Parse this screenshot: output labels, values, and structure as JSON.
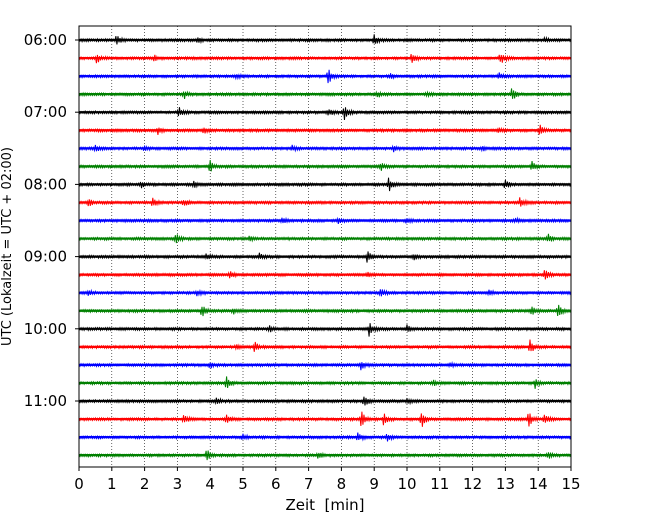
{
  "chart_data": {
    "type": "line",
    "title": "",
    "xlabel": "Zeit  [min]",
    "ylabel": "UTC (Lokalzeit = UTC + 02:00)",
    "xlim": [
      0,
      15
    ],
    "x_ticks": [
      "0",
      "1",
      "2",
      "3",
      "4",
      "5",
      "6",
      "7",
      "8",
      "9",
      "10",
      "11",
      "12",
      "13",
      "14",
      "15"
    ],
    "y_tick_labels": [
      "06:00",
      "07:00",
      "08:00",
      "09:00",
      "10:00",
      "11:00"
    ],
    "row_minutes": 15,
    "row_colors": [
      "#000000",
      "#ff0000",
      "#0000ff",
      "#008000"
    ],
    "grid": "vertical dotted lines at each minute",
    "traces": [
      {
        "start": "06:00",
        "events": [
          {
            "t": 1.15,
            "a": 0.5
          },
          {
            "t": 3.6,
            "a": 0.25
          },
          {
            "t": 9.0,
            "a": 0.55
          },
          {
            "t": 14.2,
            "a": 0.2
          }
        ]
      },
      {
        "start": "06:15",
        "events": [
          {
            "t": 0.55,
            "a": 0.6
          },
          {
            "t": 2.3,
            "a": 0.25
          },
          {
            "t": 10.15,
            "a": 0.55
          },
          {
            "t": 12.85,
            "a": 0.65
          }
        ]
      },
      {
        "start": "06:30",
        "events": [
          {
            "t": 4.8,
            "a": 0.25
          },
          {
            "t": 7.6,
            "a": 0.8
          },
          {
            "t": 9.5,
            "a": 0.3
          },
          {
            "t": 12.8,
            "a": 0.35
          }
        ]
      },
      {
        "start": "06:45",
        "events": [
          {
            "t": 3.2,
            "a": 0.45
          },
          {
            "t": 9.1,
            "a": 0.3
          },
          {
            "t": 10.6,
            "a": 0.25
          },
          {
            "t": 13.2,
            "a": 0.7
          }
        ]
      },
      {
        "start": "07:00",
        "events": [
          {
            "t": 3.05,
            "a": 0.55
          },
          {
            "t": 7.6,
            "a": 0.45
          },
          {
            "t": 8.1,
            "a": 0.75
          }
        ]
      },
      {
        "start": "07:15",
        "events": [
          {
            "t": 2.4,
            "a": 0.35
          },
          {
            "t": 3.8,
            "a": 0.3
          },
          {
            "t": 12.8,
            "a": 0.3
          },
          {
            "t": 14.05,
            "a": 0.7
          }
        ]
      },
      {
        "start": "07:30",
        "events": [
          {
            "t": 0.5,
            "a": 0.35
          },
          {
            "t": 2.0,
            "a": 0.25
          },
          {
            "t": 6.5,
            "a": 0.25
          },
          {
            "t": 9.6,
            "a": 0.3
          },
          {
            "t": 12.3,
            "a": 0.25
          }
        ]
      },
      {
        "start": "07:45",
        "events": [
          {
            "t": 4.0,
            "a": 0.65
          },
          {
            "t": 9.2,
            "a": 0.4
          },
          {
            "t": 13.8,
            "a": 0.55
          }
        ]
      },
      {
        "start": "08:00",
        "events": [
          {
            "t": 1.9,
            "a": 0.3
          },
          {
            "t": 3.5,
            "a": 0.3
          },
          {
            "t": 9.45,
            "a": 0.8
          },
          {
            "t": 13.0,
            "a": 0.45
          }
        ]
      },
      {
        "start": "08:15",
        "events": [
          {
            "t": 0.3,
            "a": 0.4
          },
          {
            "t": 2.25,
            "a": 0.55
          },
          {
            "t": 3.2,
            "a": 0.4
          },
          {
            "t": 13.45,
            "a": 0.6
          }
        ]
      },
      {
        "start": "08:30",
        "events": [
          {
            "t": 6.2,
            "a": 0.3
          },
          {
            "t": 7.9,
            "a": 0.25
          },
          {
            "t": 10.0,
            "a": 0.3
          },
          {
            "t": 13.3,
            "a": 0.25
          }
        ]
      },
      {
        "start": "08:45",
        "events": [
          {
            "t": 2.95,
            "a": 0.55
          },
          {
            "t": 5.2,
            "a": 0.25
          },
          {
            "t": 14.3,
            "a": 0.45
          }
        ]
      },
      {
        "start": "09:00",
        "events": [
          {
            "t": 3.9,
            "a": 0.35
          },
          {
            "t": 5.5,
            "a": 0.3
          },
          {
            "t": 8.8,
            "a": 0.75
          },
          {
            "t": 10.2,
            "a": 0.35
          }
        ]
      },
      {
        "start": "09:15",
        "events": [
          {
            "t": 4.6,
            "a": 0.35
          },
          {
            "t": 8.8,
            "a": 0.3
          },
          {
            "t": 14.2,
            "a": 0.55
          }
        ]
      },
      {
        "start": "09:30",
        "events": [
          {
            "t": 0.3,
            "a": 0.3
          },
          {
            "t": 3.6,
            "a": 0.3
          },
          {
            "t": 9.2,
            "a": 0.45
          },
          {
            "t": 12.5,
            "a": 0.35
          }
        ]
      },
      {
        "start": "09:45",
        "events": [
          {
            "t": 3.75,
            "a": 0.65
          },
          {
            "t": 4.7,
            "a": 0.3
          },
          {
            "t": 13.8,
            "a": 0.5
          },
          {
            "t": 14.6,
            "a": 0.75
          }
        ]
      },
      {
        "start": "10:00",
        "events": [
          {
            "t": 5.8,
            "a": 0.3
          },
          {
            "t": 8.85,
            "a": 0.8
          },
          {
            "t": 10.0,
            "a": 0.35
          }
        ]
      },
      {
        "start": "10:15",
        "events": [
          {
            "t": 4.8,
            "a": 0.3
          },
          {
            "t": 5.35,
            "a": 0.55
          },
          {
            "t": 13.75,
            "a": 0.75
          }
        ]
      },
      {
        "start": "10:30",
        "events": [
          {
            "t": 4.0,
            "a": 0.3
          },
          {
            "t": 8.6,
            "a": 0.45
          },
          {
            "t": 11.3,
            "a": 0.25
          }
        ]
      },
      {
        "start": "10:45",
        "events": [
          {
            "t": 4.5,
            "a": 0.65
          },
          {
            "t": 10.8,
            "a": 0.25
          },
          {
            "t": 13.9,
            "a": 0.55
          }
        ]
      },
      {
        "start": "11:00",
        "events": [
          {
            "t": 4.2,
            "a": 0.3
          },
          {
            "t": 8.7,
            "a": 0.75
          },
          {
            "t": 10.0,
            "a": 0.3
          }
        ]
      },
      {
        "start": "11:15",
        "events": [
          {
            "t": 3.2,
            "a": 0.55
          },
          {
            "t": 4.5,
            "a": 0.45
          },
          {
            "t": 8.6,
            "a": 0.9
          },
          {
            "t": 9.3,
            "a": 0.7
          },
          {
            "t": 10.45,
            "a": 0.95
          },
          {
            "t": 13.7,
            "a": 0.95
          },
          {
            "t": 14.2,
            "a": 0.55
          }
        ]
      },
      {
        "start": "11:30",
        "events": [
          {
            "t": 5.0,
            "a": 0.3
          },
          {
            "t": 8.5,
            "a": 0.6
          },
          {
            "t": 9.4,
            "a": 0.35
          }
        ]
      },
      {
        "start": "11:45",
        "events": [
          {
            "t": 3.9,
            "a": 0.75
          },
          {
            "t": 7.3,
            "a": 0.3
          },
          {
            "t": 14.3,
            "a": 0.45
          }
        ]
      }
    ]
  }
}
